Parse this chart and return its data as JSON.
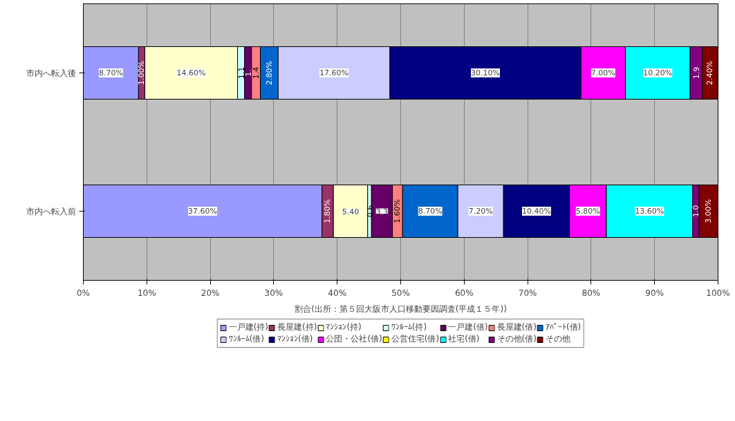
{
  "chart_data": {
    "type": "bar",
    "orientation": "horizontal",
    "stacked": true,
    "categories": [
      "市内へ転入後",
      "市内へ転入前"
    ],
    "xlabel": "割合(出所：第５回大阪市人口移動要因調査(平成１５年))",
    "xlim": [
      0,
      100
    ],
    "xticks": [
      {
        "value": 0,
        "label": "0%"
      },
      {
        "value": 10,
        "label": "10%"
      },
      {
        "value": 20,
        "label": "20%"
      },
      {
        "value": 30,
        "label": "30%"
      },
      {
        "value": 40,
        "label": "40%"
      },
      {
        "value": 50,
        "label": "50%"
      },
      {
        "value": 60,
        "label": "60%"
      },
      {
        "value": 70,
        "label": "70%"
      },
      {
        "value": 80,
        "label": "80%"
      },
      {
        "value": 90,
        "label": "90%"
      },
      {
        "value": 100,
        "label": "100%"
      }
    ],
    "grid": "x",
    "legend": "bottom",
    "series": [
      {
        "name": "一戸建(持)",
        "color": "#9999ff",
        "values": [
          8.7,
          37.6
        ],
        "value_labels": [
          "8.70%",
          "37.60%"
        ]
      },
      {
        "name": "長屋建(持)",
        "color": "#993366",
        "values": [
          1.0,
          1.8
        ],
        "value_labels": [
          "1.00%",
          "1.80%"
        ]
      },
      {
        "name": "ﾏﾝｼｮﾝ(持)",
        "color": "#ffffcc",
        "values": [
          14.6,
          5.4
        ],
        "value_labels": [
          "14.60%",
          "5.40"
        ]
      },
      {
        "name": "ﾜﾝﾙｰﾑ(持)",
        "color": "#ccffff",
        "values": [
          1.1,
          0.6
        ],
        "value_labels": [
          "1.1",
          "0.6"
        ]
      },
      {
        "name": "一戸建(借)",
        "color": "#660066",
        "values": [
          1.1,
          3.3
        ],
        "value_labels": [
          "1.",
          "3.3"
        ]
      },
      {
        "name": "長屋建(借)",
        "color": "#ff8080",
        "values": [
          1.4,
          1.6
        ],
        "value_labels": [
          "1.4",
          "1.60%"
        ]
      },
      {
        "name": "ｱﾊﾟｰﾄ(借)",
        "color": "#0066cc",
        "values": [
          2.8,
          8.7
        ],
        "value_labels": [
          "2.80%",
          "8.70%"
        ]
      },
      {
        "name": "ﾜﾝﾙｰﾑ(借)",
        "color": "#ccccff",
        "values": [
          17.6,
          7.2
        ],
        "value_labels": [
          "17.60%",
          "7.20%"
        ]
      },
      {
        "name": "ﾏﾝｼｮﾝ(借)",
        "color": "#000080",
        "values": [
          30.1,
          10.4
        ],
        "value_labels": [
          "30.10%",
          "10.40%"
        ]
      },
      {
        "name": "公団・公社(借)",
        "color": "#ff00ff",
        "values": [
          7.0,
          5.8
        ],
        "value_labels": [
          "7.00%",
          "5.80%"
        ]
      },
      {
        "name": "公営住宅(借)",
        "color": "#ffff00",
        "values": [
          0,
          0
        ],
        "value_labels": [
          null,
          null
        ]
      },
      {
        "name": "社宅(借)",
        "color": "#00ffff",
        "values": [
          10.2,
          13.6
        ],
        "value_labels": [
          "10.20%",
          "13.60%"
        ]
      },
      {
        "name": "その他(借)",
        "color": "#800080",
        "values": [
          1.9,
          1.0
        ],
        "value_labels": [
          "1.9",
          "1.0"
        ]
      },
      {
        "name": "その他",
        "color": "#800000",
        "values": [
          2.4,
          3.0
        ],
        "value_labels": [
          "2.40%",
          "3.00%"
        ]
      }
    ]
  }
}
